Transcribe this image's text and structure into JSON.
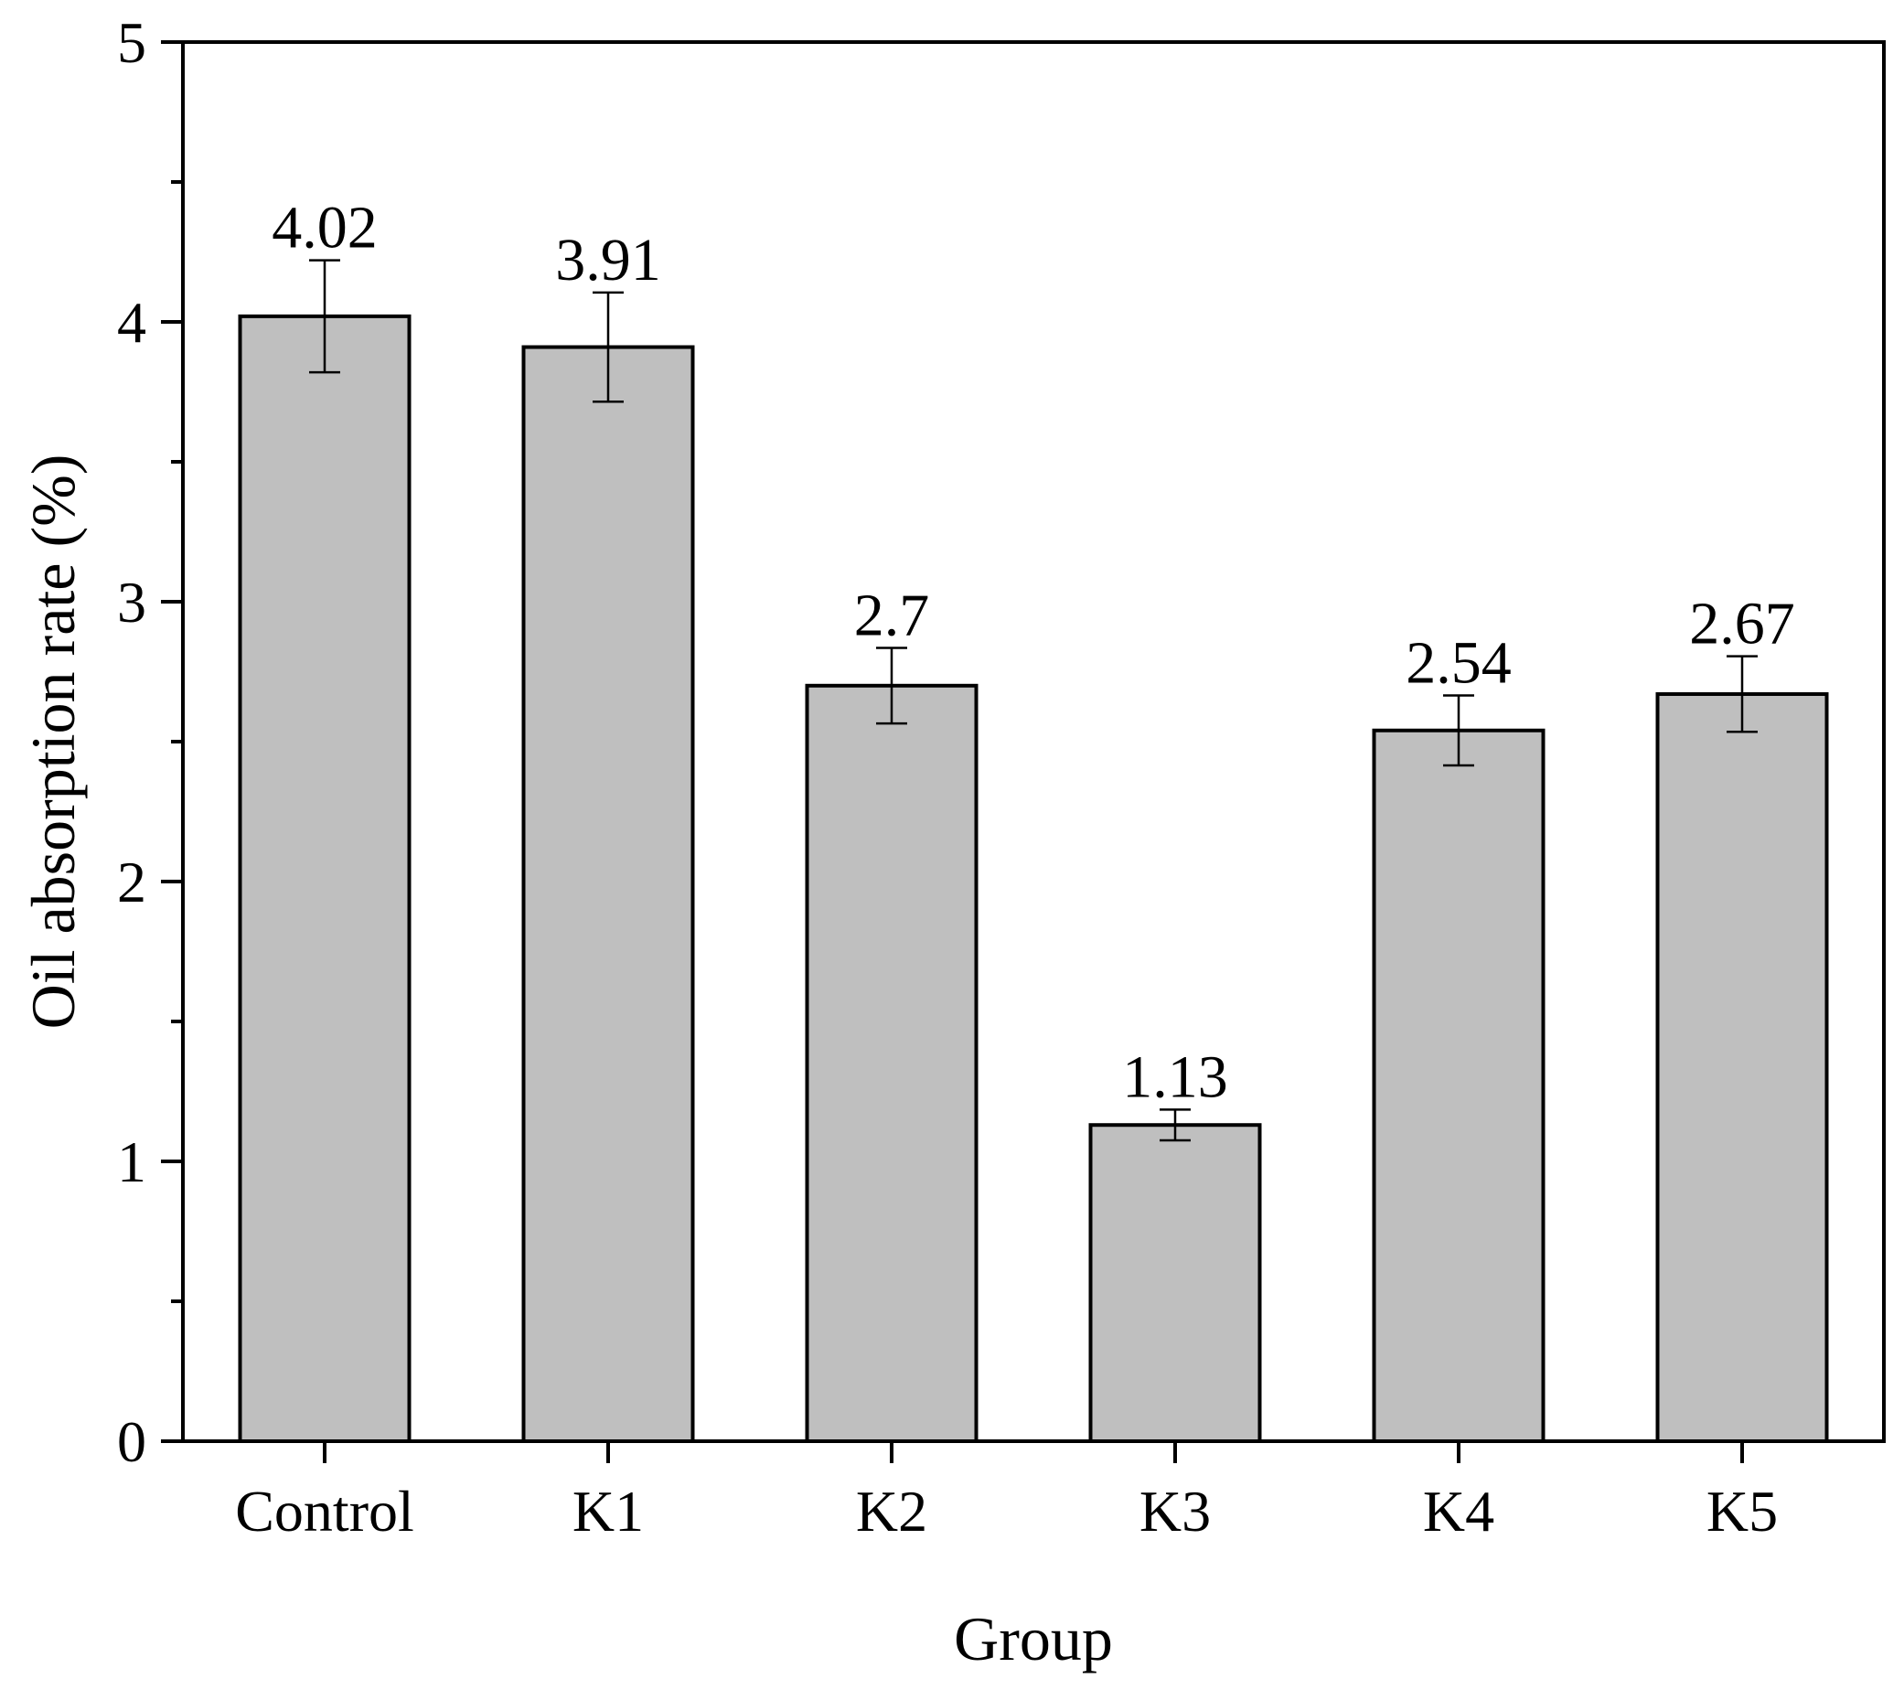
{
  "chart_data": {
    "type": "bar",
    "title": "",
    "xlabel": "Group",
    "ylabel": "Oil absorption rate (%)",
    "categories": [
      "Control",
      "K1",
      "K2",
      "K3",
      "K4",
      "K5"
    ],
    "values": [
      4.02,
      3.91,
      2.7,
      1.13,
      2.54,
      2.67
    ],
    "value_labels": [
      "4.02",
      "3.91",
      "2.7",
      "1.13",
      "2.54",
      "2.67"
    ],
    "error": [
      0.2,
      0.195,
      0.135,
      0.055,
      0.125,
      0.135
    ],
    "ylim": [
      0,
      5
    ],
    "yticks": [
      0,
      1,
      2,
      3,
      4,
      5
    ],
    "ytick_labels": [
      "0",
      "1",
      "2",
      "3",
      "4",
      "5"
    ],
    "minor_yticks": [
      0.5,
      1.5,
      2.5,
      3.5,
      4.5
    ],
    "grid": false,
    "legend": "none",
    "bar_color": "#bfbfbf",
    "edge_color": "#000000"
  }
}
